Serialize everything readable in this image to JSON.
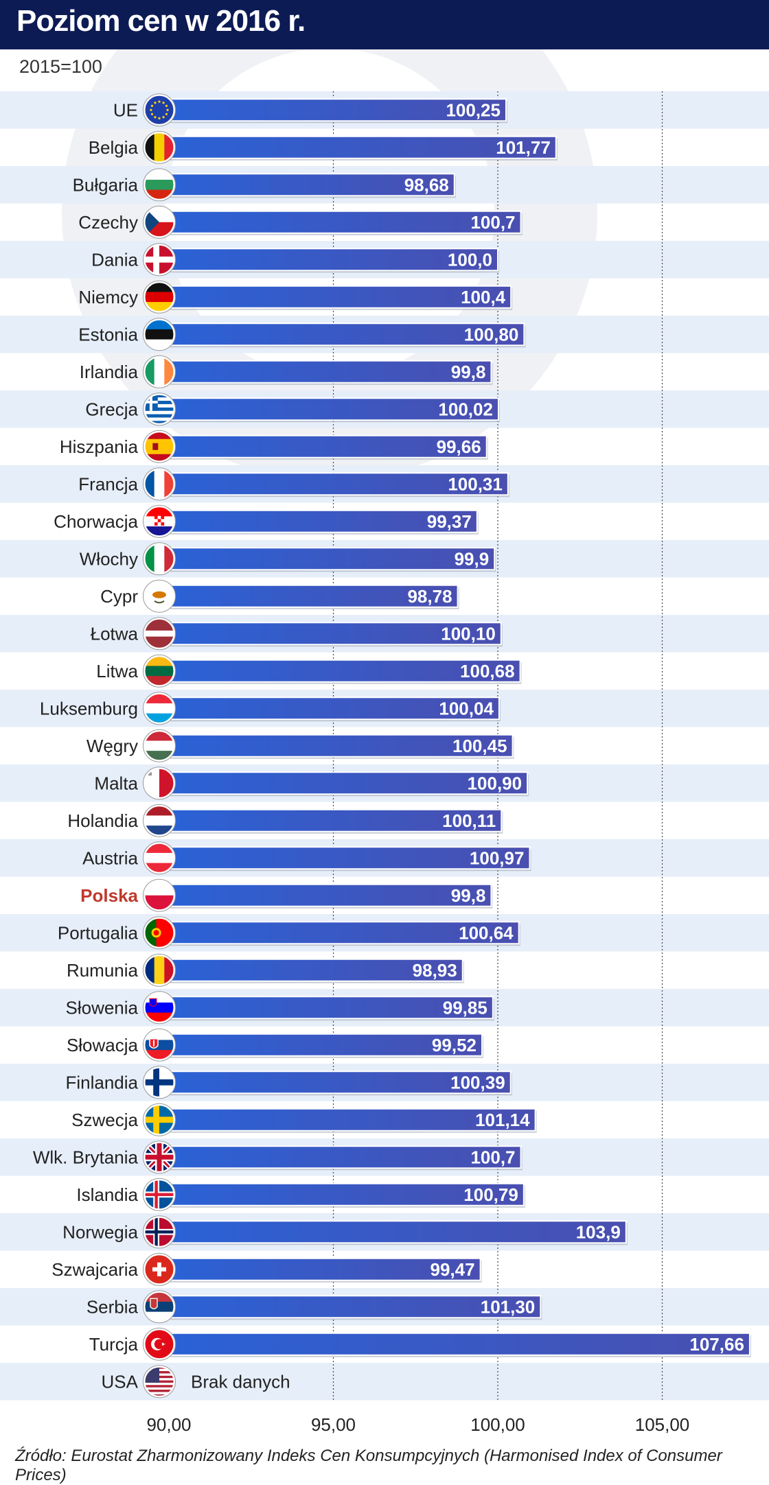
{
  "header": {
    "title": "Poziom cen w 2016 r.",
    "subtitle": "2015=100"
  },
  "source": "Źródło: Eurostat Zharmonizowany Indeks Cen Konsumpcyjnych (Harmonised Index of Consumer Prices)",
  "colors": {
    "header_bg": "#0d1b55",
    "stripe": "#e6eef9",
    "bar_start": "#2a5fd0",
    "bar_end": "#4650b3",
    "highlight_label": "#c0392b"
  },
  "chart_data": {
    "type": "bar",
    "orientation": "horizontal",
    "title": "Poziom cen w 2016 r.",
    "subtitle": "2015=100",
    "xlim": [
      90,
      108
    ],
    "xticks": [
      90,
      95,
      100,
      105
    ],
    "xtick_labels": [
      "90,00",
      "95,00",
      "100,00",
      "105,00"
    ],
    "grid": "vertical dotted lines at 95, 100, 105",
    "no_data_text": "Brak danych",
    "highlight": "Polska",
    "rows": [
      {
        "label": "UE",
        "flag": "eu-flag-icon",
        "value": 100.25,
        "display": "100,25"
      },
      {
        "label": "Belgia",
        "flag": "belgium-flag-icon",
        "value": 101.77,
        "display": "101,77"
      },
      {
        "label": "Bułgaria",
        "flag": "bulgaria-flag-icon",
        "value": 98.68,
        "display": "98,68"
      },
      {
        "label": "Czechy",
        "flag": "czechia-flag-icon",
        "value": 100.7,
        "display": "100,7"
      },
      {
        "label": "Dania",
        "flag": "denmark-flag-icon",
        "value": 100.0,
        "display": "100,0"
      },
      {
        "label": "Niemcy",
        "flag": "germany-flag-icon",
        "value": 100.4,
        "display": "100,4"
      },
      {
        "label": "Estonia",
        "flag": "estonia-flag-icon",
        "value": 100.8,
        "display": "100,80"
      },
      {
        "label": "Irlandia",
        "flag": "ireland-flag-icon",
        "value": 99.8,
        "display": "99,8"
      },
      {
        "label": "Grecja",
        "flag": "greece-flag-icon",
        "value": 100.02,
        "display": "100,02"
      },
      {
        "label": "Hiszpania",
        "flag": "spain-flag-icon",
        "value": 99.66,
        "display": "99,66"
      },
      {
        "label": "Francja",
        "flag": "france-flag-icon",
        "value": 100.31,
        "display": "100,31"
      },
      {
        "label": "Chorwacja",
        "flag": "croatia-flag-icon",
        "value": 99.37,
        "display": "99,37"
      },
      {
        "label": "Włochy",
        "flag": "italy-flag-icon",
        "value": 99.9,
        "display": "99,9"
      },
      {
        "label": "Cypr",
        "flag": "cyprus-flag-icon",
        "value": 98.78,
        "display": "98,78"
      },
      {
        "label": "Łotwa",
        "flag": "latvia-flag-icon",
        "value": 100.1,
        "display": "100,10"
      },
      {
        "label": "Litwa",
        "flag": "lithuania-flag-icon",
        "value": 100.68,
        "display": "100,68"
      },
      {
        "label": "Luksemburg",
        "flag": "luxembourg-flag-icon",
        "value": 100.04,
        "display": "100,04"
      },
      {
        "label": "Węgry",
        "flag": "hungary-flag-icon",
        "value": 100.45,
        "display": "100,45"
      },
      {
        "label": "Malta",
        "flag": "malta-flag-icon",
        "value": 100.9,
        "display": "100,90"
      },
      {
        "label": "Holandia",
        "flag": "netherlands-flag-icon",
        "value": 100.11,
        "display": "100,11"
      },
      {
        "label": "Austria",
        "flag": "austria-flag-icon",
        "value": 100.97,
        "display": "100,97"
      },
      {
        "label": "Polska",
        "flag": "poland-flag-icon",
        "value": 99.8,
        "display": "99,8"
      },
      {
        "label": "Portugalia",
        "flag": "portugal-flag-icon",
        "value": 100.64,
        "display": "100,64"
      },
      {
        "label": "Rumunia",
        "flag": "romania-flag-icon",
        "value": 98.93,
        "display": "98,93"
      },
      {
        "label": "Słowenia",
        "flag": "slovenia-flag-icon",
        "value": 99.85,
        "display": "99,85"
      },
      {
        "label": "Słowacja",
        "flag": "slovakia-flag-icon",
        "value": 99.52,
        "display": "99,52"
      },
      {
        "label": "Finlandia",
        "flag": "finland-flag-icon",
        "value": 100.39,
        "display": "100,39"
      },
      {
        "label": "Szwecja",
        "flag": "sweden-flag-icon",
        "value": 101.14,
        "display": "101,14"
      },
      {
        "label": "Wlk. Brytania",
        "flag": "uk-flag-icon",
        "value": 100.7,
        "display": "100,7"
      },
      {
        "label": "Islandia",
        "flag": "iceland-flag-icon",
        "value": 100.79,
        "display": "100,79"
      },
      {
        "label": "Norwegia",
        "flag": "norway-flag-icon",
        "value": 103.9,
        "display": "103,9"
      },
      {
        "label": "Szwajcaria",
        "flag": "switzerland-flag-icon",
        "value": 99.47,
        "display": "99,47"
      },
      {
        "label": "Serbia",
        "flag": "serbia-flag-icon",
        "value": 101.3,
        "display": "101,30"
      },
      {
        "label": "Turcja",
        "flag": "turkey-flag-icon",
        "value": 107.66,
        "display": "107,66"
      },
      {
        "label": "USA",
        "flag": "usa-flag-icon",
        "value": null,
        "display": "Brak danych"
      }
    ]
  }
}
